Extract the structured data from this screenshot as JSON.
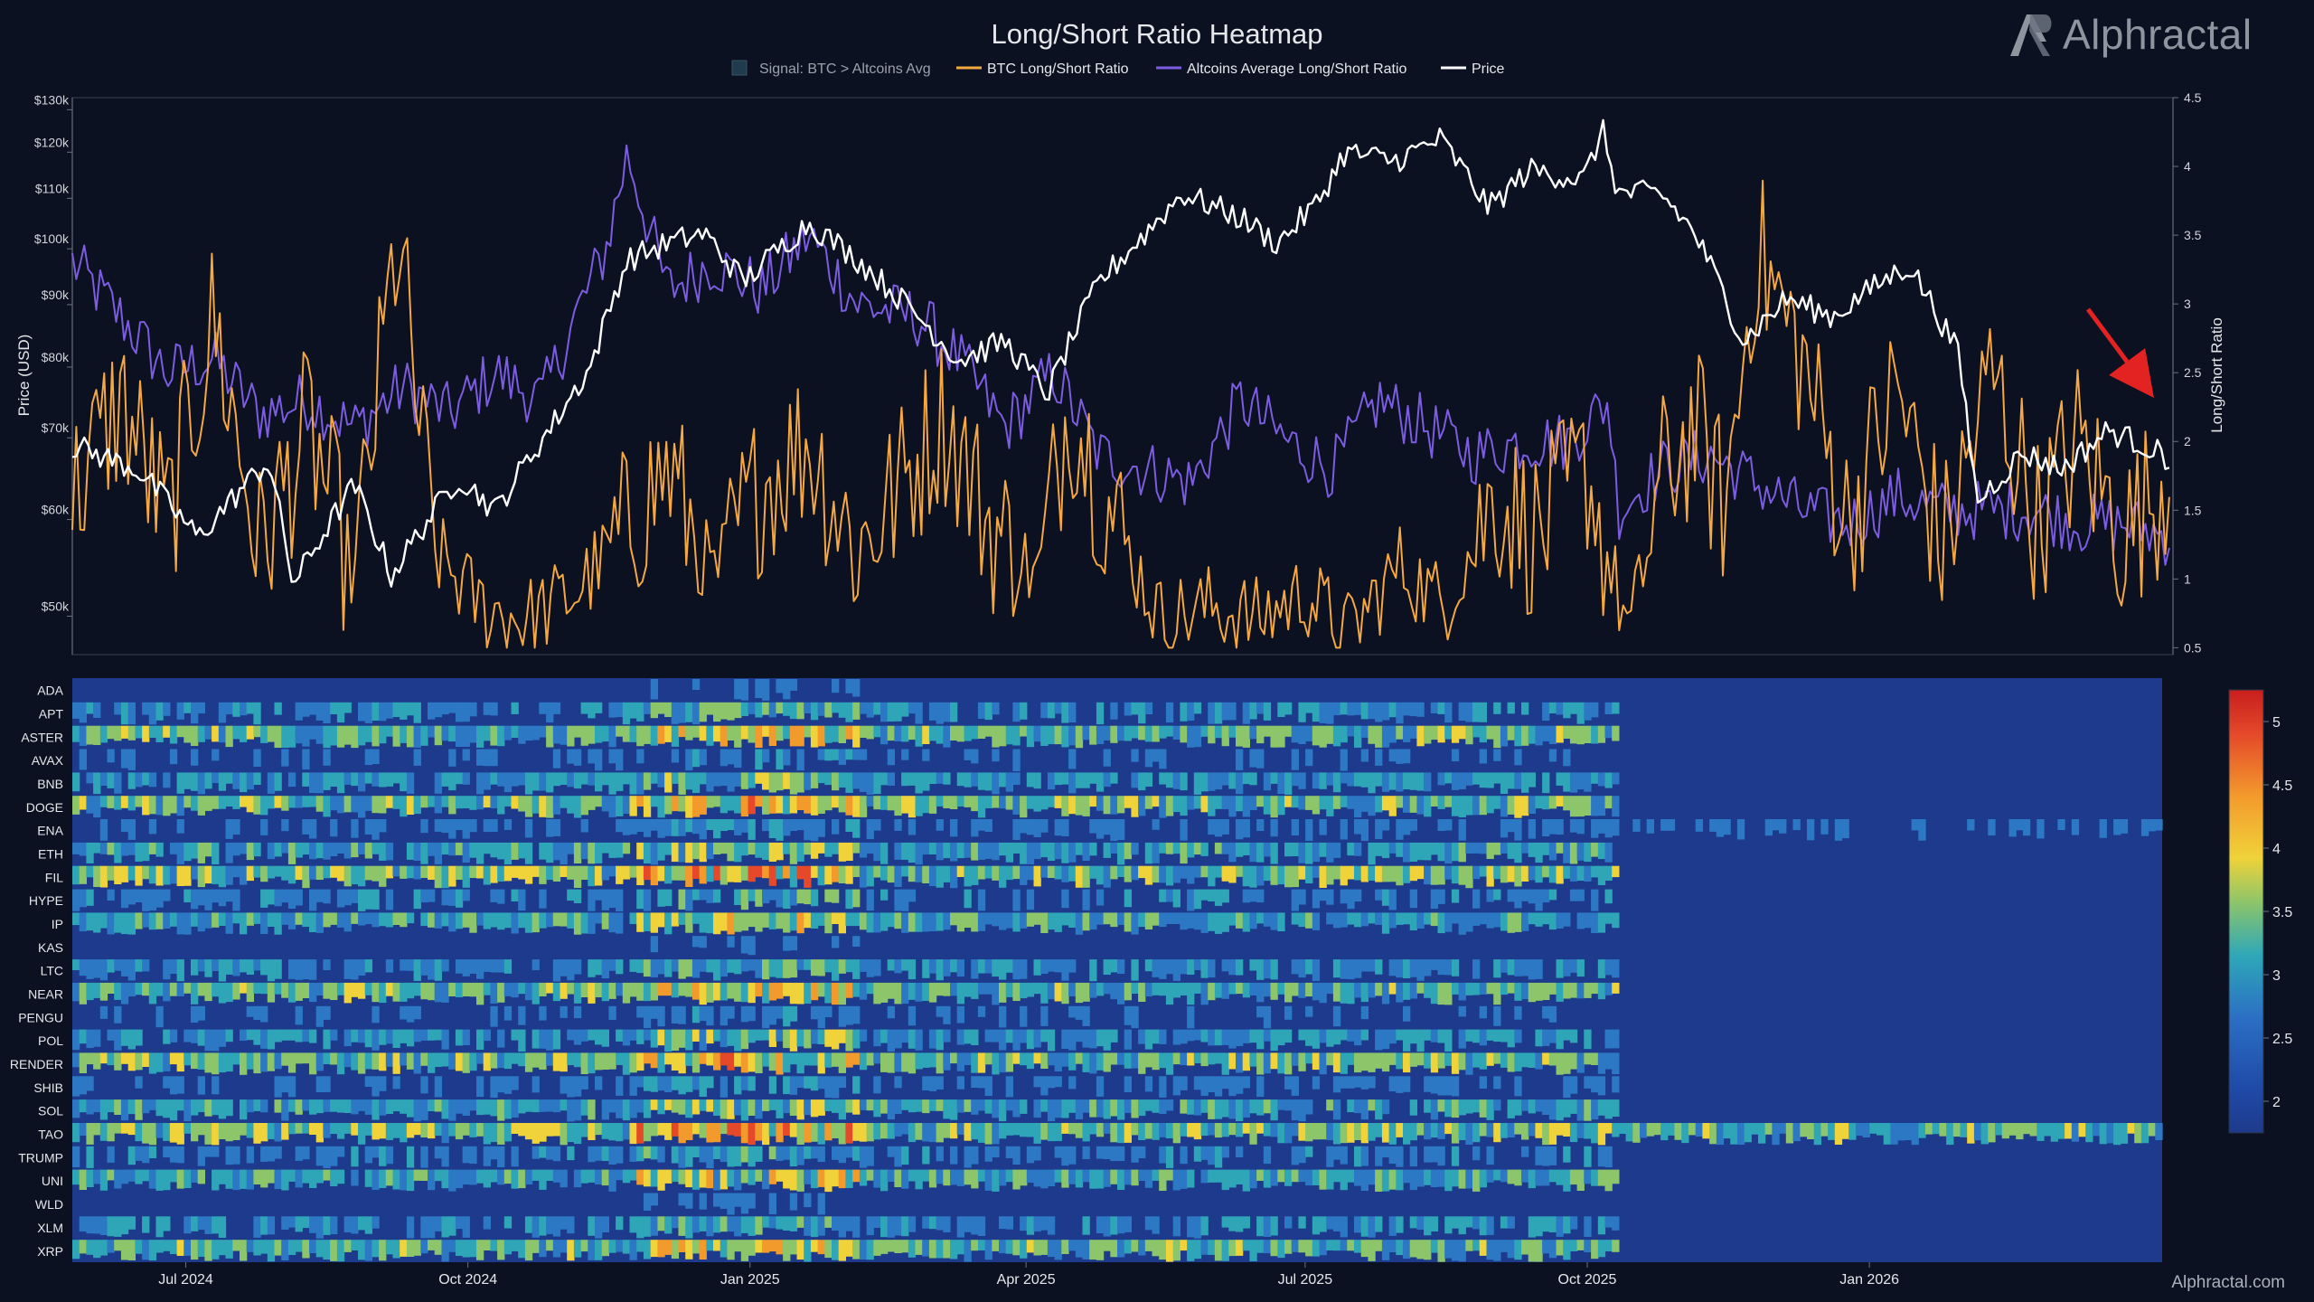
{
  "chart_data": [
    {
      "type": "line",
      "title": "Long/Short Ratio Heatmap",
      "legend": {
        "placement": "top-center",
        "entries": [
          {
            "label": "Signal: BTC > Altcoins Avg",
            "color": "#1f3b4d",
            "kind": "box"
          },
          {
            "label": "BTC Long/Short Ratio",
            "color": "#f5a742",
            "kind": "line"
          },
          {
            "label": "Altcoins Average Long/Short Ratio",
            "color": "#7c5ce0",
            "kind": "line"
          },
          {
            "label": "Price",
            "color": "#ffffff",
            "kind": "line"
          }
        ]
      },
      "ylabel_left": "Price (USD)",
      "ylabel_right": "Long/Short Ratio",
      "y_left_scale": "log",
      "y_left_ticks": [
        "$50k",
        "$60k",
        "$70k",
        "$80k",
        "$90k",
        "$100k",
        "$110k",
        "$120k",
        "$130k"
      ],
      "y_left_tick_values": [
        50000,
        60000,
        70000,
        80000,
        90000,
        100000,
        110000,
        120000,
        130000
      ],
      "y_left_range": [
        46500,
        133000
      ],
      "y_right_ticks": [
        "0.5",
        "1",
        "1.5",
        "2",
        "2.5",
        "3",
        "3.5",
        "4",
        "4.5"
      ],
      "y_right_tick_values": [
        0.5,
        1,
        1.5,
        2,
        2.5,
        3,
        3.5,
        4,
        4.5
      ],
      "y_right_range": [
        0.45,
        4.5
      ],
      "x_range": [
        "2024-05-25",
        "2026-04-10"
      ],
      "x_ticks": [
        "Jul 2024",
        "Oct 2024",
        "Jan 2025",
        "Apr 2025",
        "Jul 2025",
        "Oct 2025",
        "Jan 2026"
      ],
      "x_tick_dates": [
        "2024-07-01",
        "2024-10-01",
        "2025-01-01",
        "2025-04-01",
        "2025-07-01",
        "2025-10-01",
        "2026-01-01"
      ],
      "series": [
        {
          "name": "Price",
          "axis": "left",
          "color": "#ffffff",
          "x": [
            "2024-05-25",
            "2024-06-15",
            "2024-07-05",
            "2024-07-28",
            "2024-08-05",
            "2024-08-25",
            "2024-09-06",
            "2024-09-28",
            "2024-10-10",
            "2024-10-29",
            "2024-11-10",
            "2024-11-22",
            "2024-12-05",
            "2024-12-17",
            "2024-12-30",
            "2025-01-20",
            "2025-02-05",
            "2025-02-25",
            "2025-03-10",
            "2025-03-25",
            "2025-04-08",
            "2025-04-25",
            "2025-05-10",
            "2025-05-22",
            "2025-06-10",
            "2025-06-22",
            "2025-07-05",
            "2025-07-14",
            "2025-07-30",
            "2025-08-14",
            "2025-08-30",
            "2025-09-12",
            "2025-09-30",
            "2025-10-06",
            "2025-10-11",
            "2025-10-25",
            "2025-11-05",
            "2025-11-21",
            "2025-12-05",
            "2025-12-20",
            "2026-01-05",
            "2026-01-14",
            "2026-01-30",
            "2026-02-05",
            "2026-02-20",
            "2026-03-05",
            "2026-03-20",
            "2026-04-01",
            "2026-04-10"
          ],
          "values": [
            69000,
            66000,
            58000,
            67000,
            53000,
            64000,
            54000,
            65000,
            61000,
            72000,
            80000,
            98000,
            101000,
            103000,
            94000,
            105000,
            98000,
            88000,
            81000,
            84000,
            76000,
            94000,
            103000,
            111000,
            106000,
            101000,
            109000,
            120000,
            118000,
            123000,
            108000,
            116000,
            114000,
            125000,
            111000,
            111000,
            103000,
            84000,
            91000,
            88000,
            94000,
            97000,
            82000,
            62000,
            68000,
            66000,
            71000,
            69000,
            67000
          ]
        },
        {
          "name": "BTC Long/Short Ratio",
          "axis": "right",
          "color": "#f5a742",
          "x": [
            "2024-05-25",
            "2024-06-10",
            "2024-06-25",
            "2024-07-10",
            "2024-07-25",
            "2024-08-10",
            "2024-08-25",
            "2024-09-08",
            "2024-09-20",
            "2024-10-05",
            "2024-10-20",
            "2024-11-05",
            "2024-11-20",
            "2024-12-05",
            "2024-12-20",
            "2025-01-05",
            "2025-01-20",
            "2025-02-05",
            "2025-02-20",
            "2025-03-05",
            "2025-03-20",
            "2025-04-05",
            "2025-04-15",
            "2025-04-28",
            "2025-05-15",
            "2025-06-01",
            "2025-06-15",
            "2025-07-01",
            "2025-07-15",
            "2025-08-01",
            "2025-08-15",
            "2025-09-01",
            "2025-09-15",
            "2025-10-01",
            "2025-10-08",
            "2025-10-15",
            "2025-10-25",
            "2025-11-05",
            "2025-11-15",
            "2025-11-25",
            "2025-12-10",
            "2025-12-25",
            "2026-01-10",
            "2026-01-25",
            "2026-02-10",
            "2026-02-25",
            "2026-03-10",
            "2026-03-25",
            "2026-04-10"
          ],
          "values": [
            1.6,
            2.3,
            1.4,
            2.9,
            1.2,
            2.1,
            1.0,
            3.5,
            1.2,
            0.8,
            0.7,
            0.9,
            1.3,
            1.8,
            1.0,
            1.7,
            2.0,
            1.2,
            1.7,
            2.2,
            1.4,
            1.0,
            2.3,
            1.5,
            0.7,
            0.8,
            0.7,
            0.9,
            0.6,
            1.1,
            0.8,
            1.6,
            1.3,
            1.8,
            1.1,
            0.6,
            1.7,
            2.1,
            1.5,
            3.4,
            2.6,
            1.4,
            2.4,
            1.2,
            2.5,
            1.4,
            2.0,
            1.3,
            1.8
          ]
        },
        {
          "name": "Altcoins Average Long/Short Ratio",
          "axis": "right",
          "color": "#7c5ce0",
          "x": [
            "2024-05-25",
            "2024-06-10",
            "2024-06-25",
            "2024-07-10",
            "2024-07-25",
            "2024-08-10",
            "2024-08-25",
            "2024-09-10",
            "2024-09-25",
            "2024-10-10",
            "2024-10-25",
            "2024-11-05",
            "2024-11-15",
            "2024-11-22",
            "2024-12-05",
            "2024-12-20",
            "2025-01-05",
            "2025-01-20",
            "2025-02-05",
            "2025-02-25",
            "2025-03-10",
            "2025-03-25",
            "2025-04-10",
            "2025-04-25",
            "2025-05-10",
            "2025-05-25",
            "2025-06-10",
            "2025-06-25",
            "2025-07-10",
            "2025-07-25",
            "2025-08-10",
            "2025-08-25",
            "2025-09-10",
            "2025-09-25",
            "2025-10-08",
            "2025-10-11",
            "2025-10-25",
            "2025-11-10",
            "2025-11-25",
            "2025-12-10",
            "2025-12-25",
            "2026-01-10",
            "2026-01-25",
            "2026-02-10",
            "2026-02-25",
            "2026-03-10",
            "2026-03-25",
            "2026-04-10"
          ],
          "values": [
            3.3,
            2.9,
            2.5,
            2.6,
            2.2,
            2.3,
            2.1,
            2.4,
            2.2,
            2.5,
            2.3,
            2.9,
            3.4,
            4.1,
            3.1,
            3.3,
            3.1,
            3.5,
            3.0,
            2.9,
            2.6,
            2.1,
            2.5,
            1.9,
            1.8,
            1.7,
            2.3,
            2.0,
            1.8,
            2.3,
            2.1,
            1.9,
            2.0,
            2.0,
            2.3,
            1.5,
            1.8,
            1.9,
            1.7,
            1.5,
            1.4,
            1.6,
            1.5,
            1.5,
            1.5,
            1.4,
            1.4,
            1.3
          ]
        }
      ],
      "annotations": [
        {
          "type": "arrow",
          "color": "#e32222",
          "points_to": "2026-04-05"
        }
      ],
      "grid": false
    },
    {
      "type": "heatmap",
      "colorbar": {
        "min": 1.75,
        "max": 5.25,
        "ticks": [
          2,
          2.5,
          3,
          3.5,
          4,
          4.5,
          5
        ],
        "tick_labels": [
          "2",
          "2.5",
          "3",
          "3.5",
          "4",
          "4.5",
          "5"
        ],
        "colorscale": "jet"
      },
      "rows": [
        "ADA",
        "APT",
        "ASTER",
        "AVAX",
        "BNB",
        "DOGE",
        "ENA",
        "ETH",
        "FIL",
        "HYPE",
        "IP",
        "KAS",
        "LTC",
        "NEAR",
        "PENGU",
        "POL",
        "RENDER",
        "SHIB",
        "SOL",
        "TAO",
        "TRUMP",
        "UNI",
        "WLD",
        "XLM",
        "XRP"
      ],
      "x_range": [
        "2024-05-25",
        "2026-04-10"
      ],
      "x_ticks": [
        "Jul 2024",
        "Oct 2024",
        "Jan 2025",
        "Apr 2025",
        "Jul 2025",
        "Oct 2025",
        "Jan 2026"
      ],
      "description_free": true
    }
  ],
  "footer_text": "Alphractal.com",
  "brand": {
    "name": "Alphractal"
  }
}
